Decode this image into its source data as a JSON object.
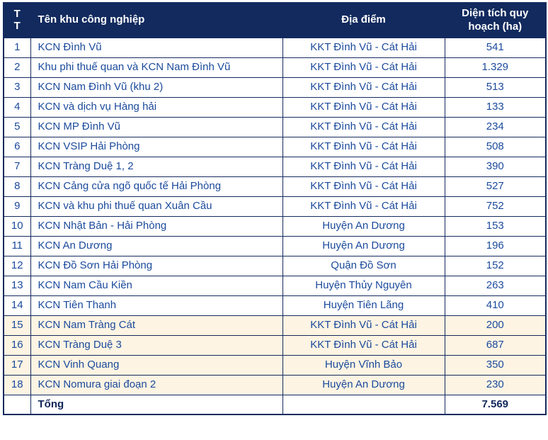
{
  "table": {
    "columns": [
      {
        "label": "T\nT"
      },
      {
        "label": "Tên khu công nghiệp"
      },
      {
        "label": "Địa điểm"
      },
      {
        "label": "Diện tích quy hoạch (ha)"
      }
    ],
    "rows": [
      {
        "tt": "1",
        "name": "KCN Đình Vũ",
        "location": "KKT Đình Vũ - Cát Hải",
        "area": "541",
        "highlighted": false
      },
      {
        "tt": "2",
        "name": "Khu phi thuế quan và KCN Nam Đình Vũ",
        "location": "KKT Đình Vũ - Cát Hải",
        "area": "1.329",
        "highlighted": false
      },
      {
        "tt": "3",
        "name": "KCN Nam Đình Vũ (khu 2)",
        "location": "KKT Đình Vũ - Cát Hải",
        "area": "513",
        "highlighted": false
      },
      {
        "tt": "4",
        "name": "KCN và dịch vụ Hàng hải",
        "location": "KKT Đình Vũ - Cát Hải",
        "area": "133",
        "highlighted": false
      },
      {
        "tt": "5",
        "name": "KCN MP Đình Vũ",
        "location": "KKT Đình Vũ - Cát Hải",
        "area": "234",
        "highlighted": false
      },
      {
        "tt": "6",
        "name": "KCN VSIP Hải Phòng",
        "location": "KKT Đình Vũ - Cát Hải",
        "area": "508",
        "highlighted": false
      },
      {
        "tt": "7",
        "name": "KCN Tràng Duệ 1, 2",
        "location": "KKT Đình Vũ - Cát Hải",
        "area": "390",
        "highlighted": false
      },
      {
        "tt": "8",
        "name": "KCN Cảng cửa ngõ quốc tế Hải Phòng",
        "location": "KKT Đình Vũ - Cát Hải",
        "area": "527",
        "highlighted": false
      },
      {
        "tt": "9",
        "name": "KCN và khu phi thuế quan Xuân Cầu",
        "location": "KKT Đình Vũ - Cát Hải",
        "area": "752",
        "highlighted": false
      },
      {
        "tt": "10",
        "name": "KCN Nhật Bản - Hải Phòng",
        "location": "Huyện An Dương",
        "area": "153",
        "highlighted": false
      },
      {
        "tt": "11",
        "name": "KCN An Dương",
        "location": "Huyện An Dương",
        "area": "196",
        "highlighted": false
      },
      {
        "tt": "12",
        "name": "KCN Đồ Sơn Hải Phòng",
        "location": "Quận Đồ Sơn",
        "area": "152",
        "highlighted": false
      },
      {
        "tt": "13",
        "name": "KCN Nam Cầu Kiền",
        "location": "Huyện Thủy Nguyên",
        "area": "263",
        "highlighted": false
      },
      {
        "tt": "14",
        "name": "KCN Tiên Thanh",
        "location": "Huyện Tiên Lãng",
        "area": "410",
        "highlighted": false
      },
      {
        "tt": "15",
        "name": "KCN Nam Tràng Cát",
        "location": "KKT Đình Vũ - Cát Hải",
        "area": "200",
        "highlighted": true
      },
      {
        "tt": "16",
        "name": "KCN Tràng Duệ 3",
        "location": "KKT Đình Vũ - Cát Hải",
        "area": "687",
        "highlighted": true
      },
      {
        "tt": "17",
        "name": "KCN Vinh Quang",
        "location": "Huyện Vĩnh Bảo",
        "area": "350",
        "highlighted": true
      },
      {
        "tt": "18",
        "name": "KCN Nomura giai đoạn 2",
        "location": "Huyện An Dương",
        "area": "230",
        "highlighted": true
      }
    ],
    "total": {
      "label": "Tổng",
      "area": "7.569"
    }
  },
  "colors": {
    "header_bg": "#122a5e",
    "header_text": "#ffffff",
    "body_text": "#1b4a9c",
    "border": "#152a5e",
    "highlight_bg": "#fdf4e3",
    "total_text": "#12275b"
  }
}
